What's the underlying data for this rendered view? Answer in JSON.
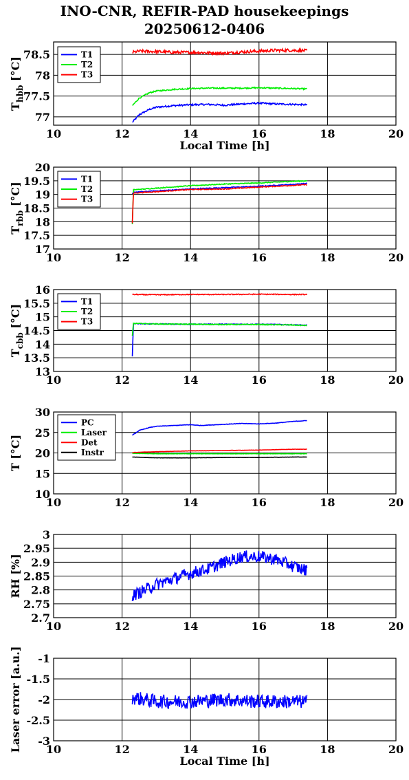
{
  "title": "INO-CNR, REFIR-PAD housekeepings",
  "subtitle": "20250612-0406",
  "chart_data": [
    {
      "type": "line",
      "ylabel_main": "T",
      "ylabel_sub": "hbb",
      "ylabel_unit": "[°C]",
      "xlabel": "Local Time [h]",
      "xlim": [
        10,
        20
      ],
      "ylim": [
        76.8,
        78.8
      ],
      "xticks": [
        10,
        12,
        14,
        16,
        18,
        20
      ],
      "yticks": [
        77,
        77.5,
        78,
        78.5
      ],
      "ytick_labels": [
        "77",
        "77.5",
        "78",
        "78.5"
      ],
      "grid": true,
      "legend_position": "top-left",
      "x_start": 12.3,
      "x_end": 17.4,
      "series": [
        {
          "name": "T1",
          "color": "#0000ff",
          "x": [
            12.3,
            12.5,
            12.8,
            13.0,
            13.5,
            14.0,
            14.5,
            15.0,
            15.5,
            16.0,
            16.5,
            17.0,
            17.4
          ],
          "y": [
            76.87,
            77.05,
            77.18,
            77.23,
            77.27,
            77.29,
            77.3,
            77.28,
            77.31,
            77.33,
            77.31,
            77.3,
            77.29
          ],
          "noise": 0.02
        },
        {
          "name": "T2",
          "color": "#00ee00",
          "x": [
            12.3,
            12.5,
            12.8,
            13.0,
            13.5,
            14.0,
            14.5,
            15.0,
            15.5,
            16.0,
            16.5,
            17.0,
            17.4
          ],
          "y": [
            77.27,
            77.45,
            77.58,
            77.62,
            77.66,
            77.68,
            77.69,
            77.69,
            77.69,
            77.7,
            77.69,
            77.68,
            77.67
          ],
          "noise": 0.015
        },
        {
          "name": "T3",
          "color": "#ff0000",
          "x": [
            12.3,
            12.5,
            13.0,
            13.5,
            14.0,
            14.5,
            15.0,
            15.5,
            16.0,
            16.5,
            17.0,
            17.4
          ],
          "y": [
            78.55,
            78.58,
            78.57,
            78.55,
            78.55,
            78.54,
            78.53,
            78.56,
            78.58,
            78.6,
            78.6,
            78.59
          ],
          "noise": 0.035
        }
      ]
    },
    {
      "type": "line",
      "ylabel_main": "T",
      "ylabel_sub": "rbb",
      "ylabel_unit": "[°C]",
      "xlabel": "",
      "xlim": [
        10,
        20
      ],
      "ylim": [
        17,
        20
      ],
      "xticks": [
        10,
        12,
        14,
        16,
        18,
        20
      ],
      "yticks": [
        17,
        17.5,
        18,
        18.5,
        19,
        19.5,
        20
      ],
      "ytick_labels": [
        "17",
        "17.5",
        "18",
        "18.5",
        "19",
        "19.5",
        "20"
      ],
      "grid": true,
      "legend_position": "top-left",
      "x_start": 12.3,
      "x_end": 17.4,
      "series": [
        {
          "name": "T1",
          "color": "#0000ff",
          "x": [
            12.3,
            12.33,
            13.0,
            14.0,
            15.0,
            16.0,
            17.0,
            17.4
          ],
          "y": [
            19.0,
            19.08,
            19.13,
            19.2,
            19.25,
            19.3,
            19.37,
            19.4
          ],
          "noise": 0.015
        },
        {
          "name": "T2",
          "color": "#00ee00",
          "x": [
            12.3,
            12.33,
            13.0,
            14.0,
            15.0,
            16.0,
            17.0,
            17.4
          ],
          "y": [
            17.9,
            19.17,
            19.23,
            19.32,
            19.38,
            19.42,
            19.48,
            19.5
          ],
          "noise": 0.015
        },
        {
          "name": "T3",
          "color": "#ff0000",
          "x": [
            12.3,
            12.33,
            13.0,
            14.0,
            15.0,
            16.0,
            17.0,
            17.4
          ],
          "y": [
            17.95,
            19.05,
            19.1,
            19.18,
            19.2,
            19.27,
            19.33,
            19.36
          ],
          "noise": 0.015
        }
      ]
    },
    {
      "type": "line",
      "ylabel_main": "T",
      "ylabel_sub": "cbb",
      "ylabel_unit": "[°C]",
      "xlabel": "",
      "xlim": [
        10,
        20
      ],
      "ylim": [
        13,
        16
      ],
      "xticks": [
        10,
        12,
        14,
        16,
        18,
        20
      ],
      "yticks": [
        13,
        13.5,
        14,
        14.5,
        15,
        15.5,
        16
      ],
      "ytick_labels": [
        "13",
        "13.5",
        "14",
        "14.5",
        "15",
        "15.5",
        "16"
      ],
      "grid": true,
      "legend_position": "top-left",
      "x_start": 12.3,
      "x_end": 17.4,
      "series": [
        {
          "name": "T1",
          "color": "#0000ff",
          "x": [
            12.3,
            12.33,
            13.0,
            14.0,
            15.0,
            16.0,
            17.0,
            17.4
          ],
          "y": [
            13.55,
            14.75,
            14.74,
            14.73,
            14.73,
            14.73,
            14.71,
            14.69
          ],
          "noise": 0.015
        },
        {
          "name": "T2",
          "color": "#00ee00",
          "x": [
            12.3,
            12.33,
            13.0,
            14.0,
            15.0,
            16.0,
            17.0,
            17.4
          ],
          "y": [
            14.3,
            14.76,
            14.74,
            14.73,
            14.72,
            14.72,
            14.7,
            14.68
          ],
          "noise": 0.015
        },
        {
          "name": "T3",
          "color": "#ff0000",
          "x": [
            12.3,
            13.0,
            14.0,
            15.0,
            16.0,
            17.0,
            17.4
          ],
          "y": [
            15.82,
            15.81,
            15.82,
            15.82,
            15.83,
            15.82,
            15.82
          ],
          "noise": 0.015
        }
      ]
    },
    {
      "type": "line",
      "ylabel_main": "T [°C]",
      "ylabel_sub": "",
      "ylabel_unit": "",
      "xlabel": "",
      "xlim": [
        10,
        20
      ],
      "ylim": [
        10,
        30
      ],
      "xticks": [
        10,
        12,
        14,
        16,
        18,
        20
      ],
      "yticks": [
        10,
        15,
        20,
        25,
        30
      ],
      "ytick_labels": [
        "10",
        "15",
        "20",
        "25",
        "30"
      ],
      "grid": true,
      "legend_position": "top-left",
      "x_start": 12.3,
      "x_end": 17.4,
      "series": [
        {
          "name": "PC",
          "color": "#0000ff",
          "x": [
            12.3,
            12.5,
            12.8,
            13.0,
            13.5,
            14.0,
            14.3,
            14.5,
            15.0,
            15.5,
            16.0,
            16.5,
            17.0,
            17.4
          ],
          "y": [
            24.3,
            25.5,
            26.2,
            26.5,
            26.7,
            26.9,
            26.7,
            26.8,
            27.0,
            27.2,
            27.1,
            27.3,
            27.7,
            27.9
          ],
          "noise": 0.05
        },
        {
          "name": "Laser",
          "color": "#00ee00",
          "x": [
            12.3,
            13.0,
            14.0,
            15.0,
            16.0,
            17.0,
            17.4
          ],
          "y": [
            19.9,
            19.8,
            19.8,
            19.8,
            19.8,
            19.8,
            19.8
          ],
          "noise": 0.03
        },
        {
          "name": "Det",
          "color": "#ff0000",
          "x": [
            12.3,
            13.0,
            14.0,
            15.0,
            16.0,
            17.0,
            17.4
          ],
          "y": [
            20.1,
            20.3,
            20.5,
            20.6,
            20.7,
            20.9,
            20.9
          ],
          "noise": 0.03
        },
        {
          "name": "Instr",
          "color": "#000000",
          "x": [
            12.3,
            13.0,
            14.0,
            15.0,
            16.0,
            17.0,
            17.4
          ],
          "y": [
            19.0,
            18.8,
            18.8,
            18.9,
            18.9,
            19.0,
            19.0
          ],
          "noise": 0.03
        }
      ]
    },
    {
      "type": "line",
      "ylabel_main": "RH [%]",
      "ylabel_sub": "",
      "ylabel_unit": "",
      "xlabel": "",
      "xlim": [
        10,
        20
      ],
      "ylim": [
        2.7,
        3
      ],
      "xticks": [
        10,
        12,
        14,
        16,
        18,
        20
      ],
      "yticks": [
        2.7,
        2.75,
        2.8,
        2.85,
        2.9,
        2.95,
        3
      ],
      "ytick_labels": [
        "2.7",
        "2.75",
        "2.8",
        "2.85",
        "2.9",
        "2.95",
        "3"
      ],
      "grid": true,
      "legend_position": "",
      "x_start": 12.3,
      "x_end": 17.4,
      "series": [
        {
          "name": "",
          "color": "#0000ff",
          "x": [
            12.3,
            12.5,
            13.0,
            13.5,
            14.0,
            14.5,
            15.0,
            15.5,
            16.0,
            16.5,
            17.0,
            17.4
          ],
          "y": [
            2.78,
            2.79,
            2.82,
            2.84,
            2.86,
            2.875,
            2.9,
            2.92,
            2.92,
            2.91,
            2.885,
            2.87
          ],
          "noise": 0.022
        }
      ]
    },
    {
      "type": "line",
      "ylabel_main": "Laser error [a.u.]",
      "ylabel_sub": "",
      "ylabel_unit": "",
      "xlabel": "Local Time [h]",
      "xlim": [
        10,
        20
      ],
      "ylim": [
        -3,
        -1
      ],
      "xticks": [
        10,
        12,
        14,
        16,
        18,
        20
      ],
      "yticks": [
        -3,
        -2.5,
        -2,
        -1.5,
        -1
      ],
      "ytick_labels": [
        "-3",
        "-2.5",
        "-2",
        "-1.5",
        "-1"
      ],
      "grid": true,
      "legend_position": "",
      "x_start": 12.3,
      "x_end": 17.4,
      "series": [
        {
          "name": "",
          "color": "#0000ff",
          "x": [
            12.3,
            13.0,
            14.0,
            15.0,
            16.0,
            17.0,
            17.4
          ],
          "y": [
            -1.95,
            -2.05,
            -2.05,
            -2.0,
            -2.05,
            -2.05,
            -2.05
          ],
          "noise": 0.17
        }
      ]
    }
  ]
}
